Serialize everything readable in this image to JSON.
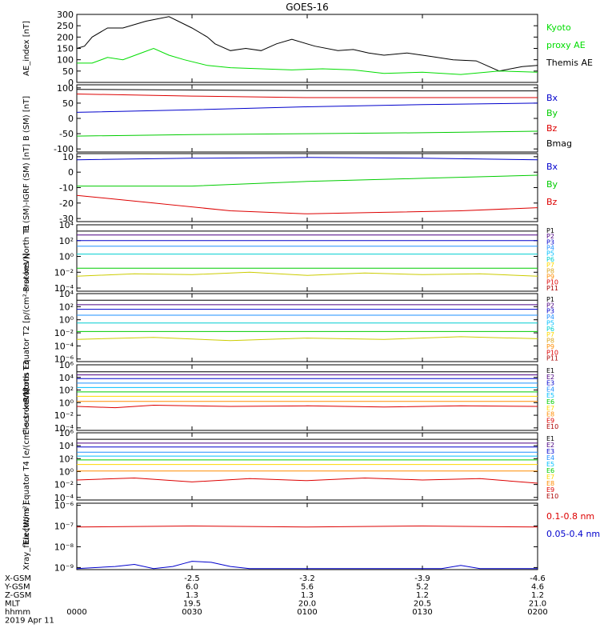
{
  "title": "GOES-16",
  "chart_data": [
    {
      "type": "line",
      "ylabel": "AE_index [nT]",
      "ylim": [
        0,
        300
      ],
      "yticks": [
        "0",
        "50",
        "100",
        "150",
        "200",
        "250",
        "300"
      ],
      "legend": [
        {
          "text": "Kyoto",
          "color": "#00dd00"
        },
        {
          "text": "proxy AE",
          "color": "#00dd00"
        },
        {
          "text": "Themis AE",
          "color": "#000000"
        }
      ],
      "series": [
        {
          "color": "#000000",
          "x": [
            0,
            2,
            4,
            8,
            12,
            18,
            24,
            30,
            34,
            36,
            40,
            44,
            48,
            52,
            56,
            62,
            68,
            72,
            76,
            80,
            86,
            92,
            98,
            104,
            110,
            116,
            120
          ],
          "y": [
            150,
            160,
            200,
            240,
            240,
            270,
            290,
            240,
            200,
            170,
            140,
            150,
            140,
            170,
            190,
            160,
            140,
            145,
            130,
            120,
            130,
            115,
            100,
            95,
            50,
            70,
            75
          ]
        },
        {
          "color": "#00dd00",
          "x": [
            0,
            4,
            8,
            12,
            16,
            20,
            24,
            28,
            34,
            40,
            48,
            56,
            64,
            72,
            80,
            90,
            100,
            110,
            120
          ],
          "y": [
            85,
            85,
            110,
            100,
            125,
            150,
            120,
            100,
            75,
            65,
            60,
            55,
            60,
            55,
            40,
            45,
            35,
            50,
            45
          ]
        }
      ]
    },
    {
      "type": "line",
      "ylabel": "B (SM) [nT]",
      "ylim": [
        -110,
        110
      ],
      "yticks": [
        "-100",
        "-50",
        "0",
        "50",
        "100"
      ],
      "legend": [
        {
          "text": "Bx",
          "color": "#0000cc"
        },
        {
          "text": "By",
          "color": "#00cc00"
        },
        {
          "text": "Bz",
          "color": "#dd0000"
        },
        {
          "text": "Bmag",
          "color": "#000000"
        }
      ],
      "series": [
        {
          "color": "#000000",
          "x": [
            0,
            30,
            60,
            90,
            120
          ],
          "y": [
            95,
            93,
            91,
            90,
            90
          ]
        },
        {
          "color": "#dd0000",
          "x": [
            0,
            30,
            60,
            90,
            120
          ],
          "y": [
            80,
            73,
            68,
            68,
            68
          ]
        },
        {
          "color": "#0000cc",
          "x": [
            0,
            30,
            60,
            90,
            120
          ],
          "y": [
            20,
            28,
            38,
            45,
            50
          ]
        },
        {
          "color": "#00cc00",
          "x": [
            0,
            30,
            60,
            90,
            120
          ],
          "y": [
            -58,
            -53,
            -50,
            -47,
            -42
          ]
        }
      ]
    },
    {
      "type": "line",
      "ylabel": "B (SM)-IGRF (SM) [nT]",
      "ylim": [
        -32,
        12
      ],
      "yticks": [
        "-30",
        "-20",
        "-10",
        "0",
        "10"
      ],
      "legend": [
        {
          "text": "Bx",
          "color": "#0000cc"
        },
        {
          "text": "By",
          "color": "#00cc00"
        },
        {
          "text": "Bz",
          "color": "#dd0000"
        }
      ],
      "series": [
        {
          "color": "#0000cc",
          "x": [
            0,
            30,
            60,
            90,
            120
          ],
          "y": [
            8,
            9,
            9.5,
            9,
            8
          ]
        },
        {
          "color": "#00cc00",
          "x": [
            0,
            30,
            60,
            90,
            120
          ],
          "y": [
            -9,
            -9,
            -6,
            -4,
            -2
          ]
        },
        {
          "color": "#dd0000",
          "x": [
            0,
            20,
            40,
            60,
            80,
            100,
            120
          ],
          "y": [
            -15,
            -20,
            -25,
            -27,
            -26,
            -25,
            -23
          ]
        }
      ]
    },
    {
      "type": "line",
      "ylabel": "Protons North T1",
      "ylim": [
        -4.4,
        4
      ],
      "log_scale": true,
      "yticks": [
        "10⁻⁴",
        "10⁻²",
        "10⁰",
        "10²",
        "10⁴"
      ],
      "legend": [
        {
          "text": "P1",
          "color": "#000000"
        },
        {
          "text": "P2",
          "color": "#4b0082"
        },
        {
          "text": "P3",
          "color": "#0000cc"
        },
        {
          "text": "P4",
          "color": "#1e90ff"
        },
        {
          "text": "P5",
          "color": "#00bfff"
        },
        {
          "text": "P6",
          "color": "#00ced1"
        },
        {
          "text": "P7",
          "color": "#ffd700"
        },
        {
          "text": "P8",
          "color": "#daa520"
        },
        {
          "text": "P9",
          "color": "#ff8c00"
        },
        {
          "text": "P10",
          "color": "#dd0000"
        },
        {
          "text": "P11",
          "color": "#aa0000"
        }
      ],
      "series": [
        {
          "color": "#000000",
          "x": [
            0,
            120
          ],
          "y": [
            3.2,
            3.2
          ]
        },
        {
          "color": "#4b0082",
          "x": [
            0,
            120
          ],
          "y": [
            2.7,
            2.7
          ]
        },
        {
          "color": "#0000cc",
          "x": [
            0,
            120
          ],
          "y": [
            2.0,
            2.0
          ]
        },
        {
          "color": "#1e90ff",
          "x": [
            0,
            120
          ],
          "y": [
            1.3,
            1.3
          ]
        },
        {
          "color": "#00ced1",
          "x": [
            0,
            120
          ],
          "y": [
            0.3,
            0.3
          ]
        },
        {
          "color": "#00cc00",
          "x": [
            0,
            120
          ],
          "y": [
            -1.5,
            -1.5
          ]
        },
        {
          "color": "#cccc00",
          "x": [
            0,
            15,
            30,
            45,
            60,
            75,
            90,
            105,
            120
          ],
          "y": [
            -2.5,
            -2.2,
            -2.3,
            -2.0,
            -2.4,
            -2.1,
            -2.3,
            -2.2,
            -2.5
          ]
        }
      ]
    },
    {
      "type": "line",
      "ylabel": "Protons Equator T2 [p/(cm²-s-sr-keV)]",
      "ylim": [
        -6.4,
        4
      ],
      "log_scale": true,
      "yticks": [
        "10⁻⁶",
        "10⁻⁴",
        "10⁻²",
        "10⁰",
        "10²",
        "10⁴"
      ],
      "legend": [
        {
          "text": "P1",
          "color": "#000000"
        },
        {
          "text": "P2",
          "color": "#4b0082"
        },
        {
          "text": "P3",
          "color": "#0000cc"
        },
        {
          "text": "P4",
          "color": "#1e90ff"
        },
        {
          "text": "P5",
          "color": "#00bfff"
        },
        {
          "text": "P6",
          "color": "#00ced1"
        },
        {
          "text": "P7",
          "color": "#ffd700"
        },
        {
          "text": "P8",
          "color": "#daa520"
        },
        {
          "text": "P9",
          "color": "#ff8c00"
        },
        {
          "text": "P10",
          "color": "#dd0000"
        },
        {
          "text": "P11",
          "color": "#aa0000"
        }
      ],
      "series": [
        {
          "color": "#000000",
          "x": [
            0,
            120
          ],
          "y": [
            3.0,
            3.0
          ]
        },
        {
          "color": "#4b0082",
          "x": [
            0,
            120
          ],
          "y": [
            2.3,
            2.3
          ]
        },
        {
          "color": "#0000cc",
          "x": [
            0,
            120
          ],
          "y": [
            1.6,
            1.6
          ]
        },
        {
          "color": "#1e90ff",
          "x": [
            0,
            120
          ],
          "y": [
            0.7,
            0.7
          ]
        },
        {
          "color": "#00ced1",
          "x": [
            0,
            120
          ],
          "y": [
            -0.5,
            -0.5
          ]
        },
        {
          "color": "#00cc00",
          "x": [
            0,
            120
          ],
          "y": [
            -1.8,
            -1.8
          ]
        },
        {
          "color": "#cccc00",
          "x": [
            0,
            20,
            40,
            60,
            80,
            100,
            120
          ],
          "y": [
            -3.0,
            -2.7,
            -3.2,
            -2.8,
            -3.0,
            -2.6,
            -2.9
          ]
        }
      ]
    },
    {
      "type": "line",
      "ylabel": "Electrons North T3",
      "ylim": [
        -4.4,
        6
      ],
      "log_scale": true,
      "yticks": [
        "10⁻⁴",
        "10⁻²",
        "10⁰",
        "10²",
        "10⁴",
        "10⁶"
      ],
      "legend": [
        {
          "text": "E1",
          "color": "#000000"
        },
        {
          "text": "E2",
          "color": "#4b0082"
        },
        {
          "text": "E3",
          "color": "#0000cc"
        },
        {
          "text": "E4",
          "color": "#1e90ff"
        },
        {
          "text": "E5",
          "color": "#00bfff"
        },
        {
          "text": "E6",
          "color": "#00cc00"
        },
        {
          "text": "E7",
          "color": "#ffd700"
        },
        {
          "text": "E8",
          "color": "#ff8c00"
        },
        {
          "text": "E9",
          "color": "#dd0000"
        },
        {
          "text": "E10",
          "color": "#aa0000"
        }
      ],
      "series": [
        {
          "color": "#000000",
          "x": [
            0,
            120
          ],
          "y": [
            4.9,
            4.9
          ]
        },
        {
          "color": "#4b0082",
          "x": [
            0,
            120
          ],
          "y": [
            4.4,
            4.4
          ]
        },
        {
          "color": "#0000cc",
          "x": [
            0,
            120
          ],
          "y": [
            3.8,
            3.8
          ]
        },
        {
          "color": "#1e90ff",
          "x": [
            0,
            120
          ],
          "y": [
            3.1,
            3.1
          ]
        },
        {
          "color": "#00bfff",
          "x": [
            0,
            120
          ],
          "y": [
            2.4,
            2.4
          ]
        },
        {
          "color": "#00cc00",
          "x": [
            0,
            120
          ],
          "y": [
            1.7,
            1.7
          ]
        },
        {
          "color": "#ffd700",
          "x": [
            0,
            120
          ],
          "y": [
            1.0,
            1.0
          ]
        },
        {
          "color": "#ff8c00",
          "x": [
            0,
            120
          ],
          "y": [
            0.2,
            0.2
          ]
        },
        {
          "color": "#dd0000",
          "x": [
            0,
            10,
            20,
            40,
            60,
            80,
            100,
            120
          ],
          "y": [
            -0.6,
            -0.8,
            -0.4,
            -0.6,
            -0.5,
            -0.7,
            -0.5,
            -0.6
          ]
        }
      ]
    },
    {
      "type": "line",
      "ylabel": "Electrons Equator T4 [e/(cm²-s-sr-keV)]",
      "ylim": [
        -4.4,
        6
      ],
      "log_scale": true,
      "yticks": [
        "10⁻⁴",
        "10⁻²",
        "10⁰",
        "10²",
        "10⁴",
        "10⁶"
      ],
      "legend": [
        {
          "text": "E1",
          "color": "#000000"
        },
        {
          "text": "E2",
          "color": "#4b0082"
        },
        {
          "text": "E3",
          "color": "#0000cc"
        },
        {
          "text": "E4",
          "color": "#1e90ff"
        },
        {
          "text": "E5",
          "color": "#00bfff"
        },
        {
          "text": "E6",
          "color": "#00cc00"
        },
        {
          "text": "E7",
          "color": "#ffd700"
        },
        {
          "text": "E8",
          "color": "#ff8c00"
        },
        {
          "text": "E9",
          "color": "#dd0000"
        },
        {
          "text": "E10",
          "color": "#aa0000"
        }
      ],
      "series": [
        {
          "color": "#000000",
          "x": [
            0,
            120
          ],
          "y": [
            5.0,
            5.0
          ]
        },
        {
          "color": "#4b0082",
          "x": [
            0,
            120
          ],
          "y": [
            4.4,
            4.4
          ]
        },
        {
          "color": "#0000cc",
          "x": [
            0,
            120
          ],
          "y": [
            3.8,
            3.8
          ]
        },
        {
          "color": "#1e90ff",
          "x": [
            0,
            120
          ],
          "y": [
            3.0,
            3.0
          ]
        },
        {
          "color": "#00bfff",
          "x": [
            0,
            120
          ],
          "y": [
            2.4,
            2.4
          ]
        },
        {
          "color": "#00cc00",
          "x": [
            0,
            120
          ],
          "y": [
            1.8,
            1.8
          ]
        },
        {
          "color": "#ffd700",
          "x": [
            0,
            120
          ],
          "y": [
            1.1,
            1.1
          ]
        },
        {
          "color": "#ff8c00",
          "x": [
            0,
            120
          ],
          "y": [
            0.1,
            0.1
          ]
        },
        {
          "color": "#dd0000",
          "x": [
            0,
            15,
            30,
            45,
            60,
            75,
            90,
            105,
            120
          ],
          "y": [
            -1.3,
            -1.0,
            -1.6,
            -1.1,
            -1.4,
            -1.0,
            -1.3,
            -1.1,
            -1.8
          ]
        }
      ]
    },
    {
      "type": "line",
      "ylabel": "Xray_flux [W/m²]",
      "ylim": [
        -9.1,
        -5.9
      ],
      "log_scale": true,
      "yticks": [
        "10⁻⁹",
        "10⁻⁸",
        "10⁻⁷",
        "10⁻⁶"
      ],
      "legend": [
        {
          "text": "0.1-0.8 nm",
          "color": "#dd0000"
        },
        {
          "text": "0.05-0.4 nm",
          "color": "#0000cc"
        }
      ],
      "series": [
        {
          "color": "#dd0000",
          "x": [
            0,
            30,
            60,
            90,
            120
          ],
          "y": [
            -7.05,
            -7.0,
            -7.05,
            -7.0,
            -7.05
          ]
        },
        {
          "color": "#0000cc",
          "x": [
            0,
            10,
            15,
            20,
            25,
            28,
            30,
            35,
            40,
            45,
            50,
            55,
            60,
            70,
            80,
            85,
            90,
            95,
            100,
            105,
            110,
            115,
            120
          ],
          "y": [
            -9.05,
            -8.95,
            -8.85,
            -9.05,
            -8.95,
            -8.8,
            -8.7,
            -8.75,
            -8.95,
            -9.05,
            -9.05,
            -9.05,
            -9.05,
            -9.05,
            -9.05,
            -9.05,
            -9.05,
            -9.05,
            -8.9,
            -9.05,
            -9.05,
            -9.05,
            -9.05
          ]
        }
      ]
    }
  ],
  "x_axis": {
    "ticks": [
      "0000",
      "0030",
      "0100",
      "0130",
      "0200"
    ],
    "tick_minutes": [
      0,
      30,
      60,
      90,
      120
    ],
    "rows": [
      {
        "label": "X-GSM",
        "values": [
          "",
          "-2.5",
          "-3.2",
          "-3.9",
          "-4.6"
        ]
      },
      {
        "label": "Y-GSM",
        "values": [
          "",
          "6.0",
          "5.6",
          "5.2",
          "4.6"
        ]
      },
      {
        "label": "Z-GSM",
        "values": [
          "",
          "1.3",
          "1.3",
          "1.2",
          "1.2"
        ]
      },
      {
        "label": "MLT",
        "values": [
          "",
          "19.5",
          "20.0",
          "20.5",
          "21.0"
        ]
      },
      {
        "label": "hhmm",
        "values": [
          "0000",
          "0030",
          "0100",
          "0130",
          "0200"
        ]
      }
    ],
    "date": "2019 Apr 11"
  }
}
